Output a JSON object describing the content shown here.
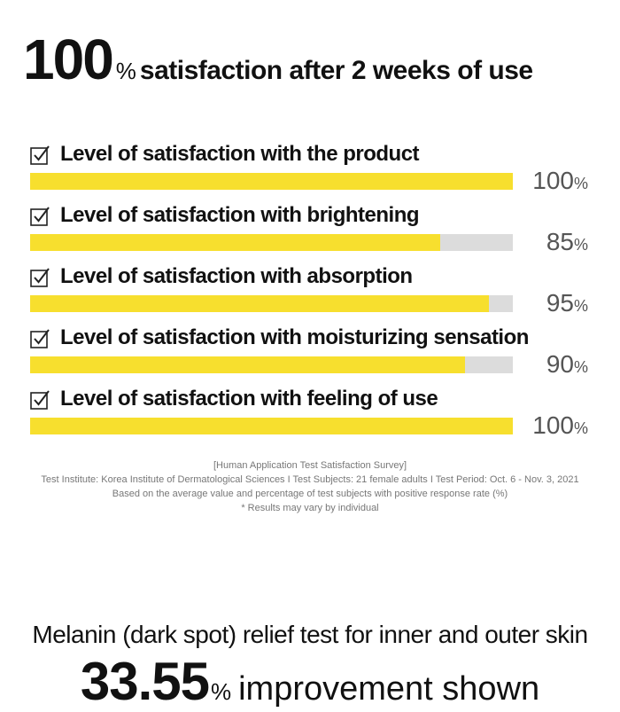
{
  "header": {
    "big_number": "100",
    "percent_sign": "%",
    "headline_rest": "satisfaction after 2 weeks of use"
  },
  "chart_data": {
    "type": "bar",
    "categories": [
      "Level of satisfaction with the product",
      "Level of satisfaction with brightening",
      "Level of satisfaction with absorption",
      "Level of satisfaction with moisturizing sensation",
      "Level of satisfaction with feeling of use"
    ],
    "values": [
      100,
      85,
      95,
      90,
      100
    ],
    "value_labels": [
      "100",
      "85",
      "95",
      "90",
      "100"
    ],
    "unit": "%",
    "ylim": [
      0,
      100
    ],
    "bar_color": "#f7df2e",
    "track_color": "#dcdcdc"
  },
  "notes": {
    "line1": "[Human Application Test Satisfaction Survey]",
    "line2": "Test Institute: Korea Institute of Dermatological Sciences  I  Test Subjects: 21 female adults  I  Test Period: Oct. 6 - Nov. 3, 2021",
    "line3": "Based on the average value and percentage of test subjects with positive response rate (%)",
    "line4": "* Results may vary by individual"
  },
  "section2": {
    "title": "Melanin (dark spot) relief test for inner and outer skin",
    "big_number": "33.55",
    "percent_sign": "%",
    "rest": "improvement shown"
  }
}
